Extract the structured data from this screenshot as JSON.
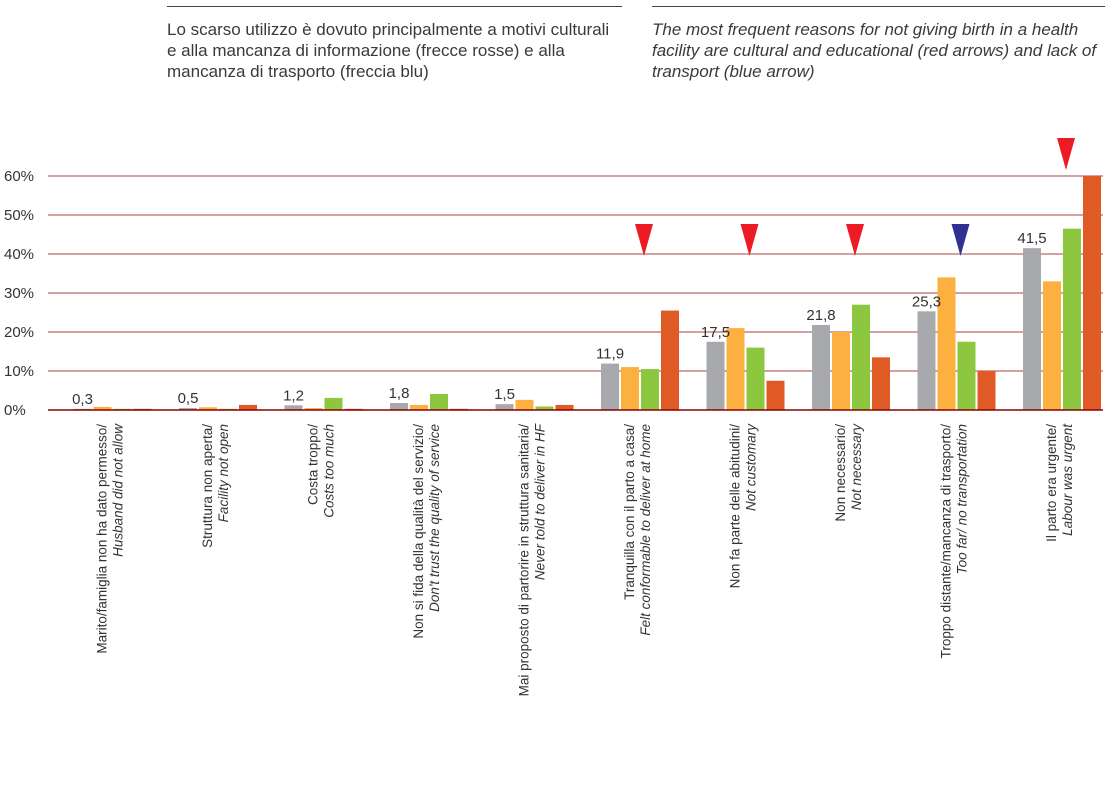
{
  "captions": {
    "italian": "Lo scarso utilizzo è dovuto principalmente a motivi culturali e alla mancanza di informazione (frecce rosse) e alla mancanza di trasporto (freccia blu)",
    "english": "The most frequent reasons for not giving birth in a health facility are cultural and educational  (red arrows) and lack of transport (blue arrow)"
  },
  "colors": {
    "series": [
      "#a7a9ac",
      "#fbb040",
      "#8dc63f",
      "#e05a26"
    ],
    "gridline": "#8b0000",
    "axis": "#8b0000",
    "arrow_red": "#ed1c24",
    "arrow_blue": "#2e3192"
  },
  "chart_data": {
    "type": "bar",
    "title": "",
    "xlabel": "",
    "ylabel": "",
    "ylim": [
      0,
      60
    ],
    "yticks": [
      "0%",
      "10%",
      "20%",
      "30%",
      "40%",
      "50%",
      "60%"
    ],
    "grid": true,
    "legend": "none",
    "categories": [
      {
        "it": "Marito/famiglia non ha dato permesso/",
        "en": "Husband did not allow"
      },
      {
        "it": "Struttura non aperta/",
        "en": "Facility not open"
      },
      {
        "it": "Costa troppo/",
        "en": "Costs too much"
      },
      {
        "it": "Non si fida della qualità del servizio/",
        "en": "Don't trust the quality of service"
      },
      {
        "it": "Mai proposto di partorire in struttura sanitaria/",
        "en": "Never told to deliver in HF"
      },
      {
        "it": "Tranquilla con il parto a casa/",
        "en": "Felt conformable to deliver at home"
      },
      {
        "it": "Non fa parte delle abitudini/",
        "en": "Not customary"
      },
      {
        "it": "Non necessario/",
        "en": "Not necessary"
      },
      {
        "it": "Troppo distante/mancanza di trasporto/",
        "en": "Too far/ no transportation"
      },
      {
        "it": "Il parto era urgente/",
        "en": "Labour was urgent"
      }
    ],
    "series": [
      {
        "values": [
          0.3,
          0.5,
          1.2,
          1.8,
          1.5,
          11.9,
          17.5,
          21.8,
          25.3,
          41.5
        ]
      },
      {
        "values": [
          0.8,
          0.7,
          0.5,
          1.3,
          2.6,
          11.0,
          21.0,
          20.0,
          34.0,
          33.0
        ]
      },
      {
        "values": [
          0.3,
          0.3,
          3.1,
          4.1,
          0.9,
          10.5,
          16.0,
          27.0,
          17.5,
          46.5
        ]
      },
      {
        "values": [
          0.3,
          1.3,
          0.3,
          0.3,
          1.3,
          25.5,
          7.5,
          13.5,
          10.0,
          60.0
        ]
      }
    ],
    "data_labels": [
      "0,3",
      "0,5",
      "1,2",
      "1,8",
      "1,5",
      "11,9",
      "17,5",
      "21,8",
      "25,3",
      "41,5"
    ],
    "arrows": [
      {
        "category_index": 5,
        "color": "red"
      },
      {
        "category_index": 6,
        "color": "red"
      },
      {
        "category_index": 7,
        "color": "red"
      },
      {
        "category_index": 8,
        "color": "blue"
      },
      {
        "category_index": 9,
        "color": "red"
      }
    ]
  }
}
